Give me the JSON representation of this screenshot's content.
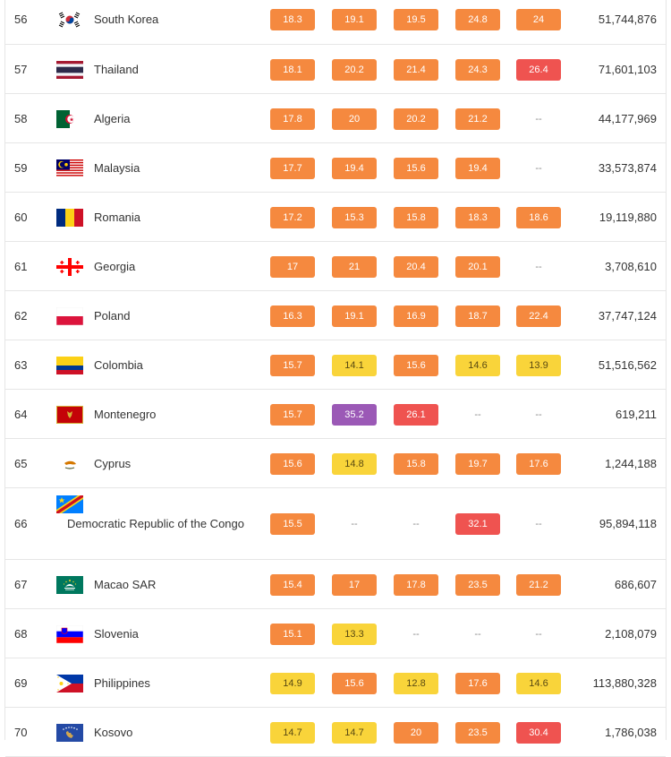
{
  "colors": {
    "orange": "#f5893f",
    "yellow": "#f9d43a",
    "red": "#ef5350",
    "purple": "#9b59b6",
    "border": "#e6e6e6"
  },
  "rows": [
    {
      "rank": "56",
      "country": "South Korea",
      "flag": "south-korea-flag",
      "values": [
        {
          "text": "18.3",
          "color": "orange"
        },
        {
          "text": "19.1",
          "color": "orange"
        },
        {
          "text": "19.5",
          "color": "orange"
        },
        {
          "text": "24.8",
          "color": "orange"
        },
        {
          "text": "24",
          "color": "orange"
        }
      ],
      "population": "51,744,876"
    },
    {
      "rank": "57",
      "country": "Thailand",
      "flag": "thailand-flag",
      "values": [
        {
          "text": "18.1",
          "color": "orange"
        },
        {
          "text": "20.2",
          "color": "orange"
        },
        {
          "text": "21.4",
          "color": "orange"
        },
        {
          "text": "24.3",
          "color": "orange"
        },
        {
          "text": "26.4",
          "color": "red"
        }
      ],
      "population": "71,601,103"
    },
    {
      "rank": "58",
      "country": "Algeria",
      "flag": "algeria-flag",
      "values": [
        {
          "text": "17.8",
          "color": "orange"
        },
        {
          "text": "20",
          "color": "orange"
        },
        {
          "text": "20.2",
          "color": "orange"
        },
        {
          "text": "21.2",
          "color": "orange"
        },
        {
          "text": "--",
          "color": "empty"
        }
      ],
      "population": "44,177,969"
    },
    {
      "rank": "59",
      "country": "Malaysia",
      "flag": "malaysia-flag",
      "values": [
        {
          "text": "17.7",
          "color": "orange"
        },
        {
          "text": "19.4",
          "color": "orange"
        },
        {
          "text": "15.6",
          "color": "orange"
        },
        {
          "text": "19.4",
          "color": "orange"
        },
        {
          "text": "--",
          "color": "empty"
        }
      ],
      "population": "33,573,874"
    },
    {
      "rank": "60",
      "country": "Romania",
      "flag": "romania-flag",
      "values": [
        {
          "text": "17.2",
          "color": "orange"
        },
        {
          "text": "15.3",
          "color": "orange"
        },
        {
          "text": "15.8",
          "color": "orange"
        },
        {
          "text": "18.3",
          "color": "orange"
        },
        {
          "text": "18.6",
          "color": "orange"
        }
      ],
      "population": "19,119,880"
    },
    {
      "rank": "61",
      "country": "Georgia",
      "flag": "georgia-flag",
      "values": [
        {
          "text": "17",
          "color": "orange"
        },
        {
          "text": "21",
          "color": "orange"
        },
        {
          "text": "20.4",
          "color": "orange"
        },
        {
          "text": "20.1",
          "color": "orange"
        },
        {
          "text": "--",
          "color": "empty"
        }
      ],
      "population": "3,708,610"
    },
    {
      "rank": "62",
      "country": "Poland",
      "flag": "poland-flag",
      "values": [
        {
          "text": "16.3",
          "color": "orange"
        },
        {
          "text": "19.1",
          "color": "orange"
        },
        {
          "text": "16.9",
          "color": "orange"
        },
        {
          "text": "18.7",
          "color": "orange"
        },
        {
          "text": "22.4",
          "color": "orange"
        }
      ],
      "population": "37,747,124"
    },
    {
      "rank": "63",
      "country": "Colombia",
      "flag": "colombia-flag",
      "values": [
        {
          "text": "15.7",
          "color": "orange"
        },
        {
          "text": "14.1",
          "color": "yellow"
        },
        {
          "text": "15.6",
          "color": "orange"
        },
        {
          "text": "14.6",
          "color": "yellow"
        },
        {
          "text": "13.9",
          "color": "yellow"
        }
      ],
      "population": "51,516,562"
    },
    {
      "rank": "64",
      "country": "Montenegro",
      "flag": "montenegro-flag",
      "values": [
        {
          "text": "15.7",
          "color": "orange"
        },
        {
          "text": "35.2",
          "color": "purple"
        },
        {
          "text": "26.1",
          "color": "red"
        },
        {
          "text": "--",
          "color": "empty"
        },
        {
          "text": "--",
          "color": "empty"
        }
      ],
      "population": "619,211"
    },
    {
      "rank": "65",
      "country": "Cyprus",
      "flag": "cyprus-flag",
      "values": [
        {
          "text": "15.6",
          "color": "orange"
        },
        {
          "text": "14.8",
          "color": "yellow"
        },
        {
          "text": "15.8",
          "color": "orange"
        },
        {
          "text": "19.7",
          "color": "orange"
        },
        {
          "text": "17.6",
          "color": "orange"
        }
      ],
      "population": "1,244,188"
    },
    {
      "rank": "66",
      "country": "Democratic Republic of the Congo",
      "flag": "dr-congo-flag",
      "values": [
        {
          "text": "15.5",
          "color": "orange"
        },
        {
          "text": "--",
          "color": "empty"
        },
        {
          "text": "--",
          "color": "empty"
        },
        {
          "text": "32.1",
          "color": "red"
        },
        {
          "text": "--",
          "color": "empty"
        }
      ],
      "population": "95,894,118"
    },
    {
      "rank": "67",
      "country": "Macao SAR",
      "flag": "macao-flag",
      "values": [
        {
          "text": "15.4",
          "color": "orange"
        },
        {
          "text": "17",
          "color": "orange"
        },
        {
          "text": "17.8",
          "color": "orange"
        },
        {
          "text": "23.5",
          "color": "orange"
        },
        {
          "text": "21.2",
          "color": "orange"
        }
      ],
      "population": "686,607"
    },
    {
      "rank": "68",
      "country": "Slovenia",
      "flag": "slovenia-flag",
      "values": [
        {
          "text": "15.1",
          "color": "orange"
        },
        {
          "text": "13.3",
          "color": "yellow"
        },
        {
          "text": "--",
          "color": "empty"
        },
        {
          "text": "--",
          "color": "empty"
        },
        {
          "text": "--",
          "color": "empty"
        }
      ],
      "population": "2,108,079"
    },
    {
      "rank": "69",
      "country": "Philippines",
      "flag": "philippines-flag",
      "values": [
        {
          "text": "14.9",
          "color": "yellow"
        },
        {
          "text": "15.6",
          "color": "orange"
        },
        {
          "text": "12.8",
          "color": "yellow"
        },
        {
          "text": "17.6",
          "color": "orange"
        },
        {
          "text": "14.6",
          "color": "yellow"
        }
      ],
      "population": "113,880,328"
    },
    {
      "rank": "70",
      "country": "Kosovo",
      "flag": "kosovo-flag",
      "values": [
        {
          "text": "14.7",
          "color": "yellow"
        },
        {
          "text": "14.7",
          "color": "yellow"
        },
        {
          "text": "20",
          "color": "orange"
        },
        {
          "text": "23.5",
          "color": "orange"
        },
        {
          "text": "30.4",
          "color": "red"
        }
      ],
      "population": "1,786,038"
    }
  ]
}
